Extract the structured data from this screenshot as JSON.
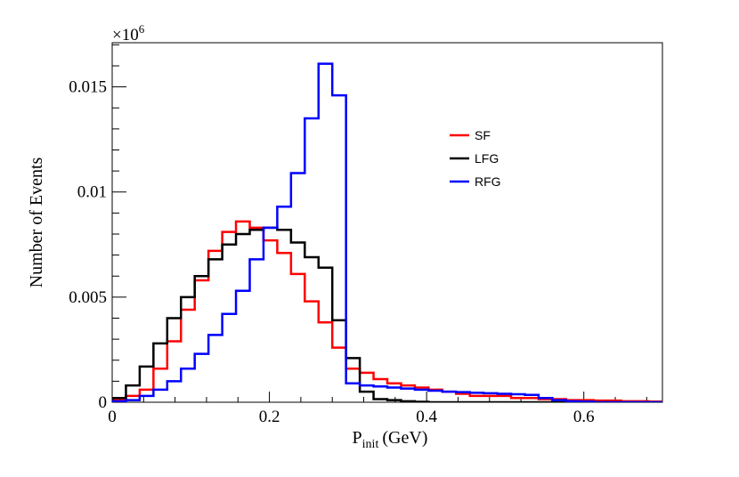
{
  "chart_data": {
    "type": "histogram",
    "title": "",
    "xlabel": {
      "main": "P",
      "subscript": "init",
      "unit": "(GeV)"
    },
    "ylabel": "Number of Events",
    "y_multiplier": {
      "base": "×10",
      "exponent": "6"
    },
    "xlim": [
      0,
      0.7
    ],
    "ylim": [
      0,
      0.0171
    ],
    "x_ticks": [
      {
        "value": 0,
        "label": "0"
      },
      {
        "value": 0.2,
        "label": "0.2"
      },
      {
        "value": 0.4,
        "label": "0.4"
      },
      {
        "value": 0.6,
        "label": "0.6"
      }
    ],
    "y_ticks": [
      {
        "value": 0,
        "label": "0"
      },
      {
        "value": 0.005,
        "label": "0.005"
      },
      {
        "value": 0.01,
        "label": "0.01"
      },
      {
        "value": 0.015,
        "label": "0.015"
      }
    ],
    "bin_edges_start": 0,
    "bin_width": 0.0175,
    "legend_position": "top-right",
    "series": [
      {
        "name": "SF",
        "color": "#ff0000",
        "values": [
          0.0001,
          0.0003,
          0.0006,
          0.0016,
          0.0029,
          0.0044,
          0.0058,
          0.0072,
          0.0081,
          0.0086,
          0.0083,
          0.0077,
          0.0071,
          0.0061,
          0.0048,
          0.0038,
          0.0026,
          0.0016,
          0.0014,
          0.0011,
          0.0009,
          0.0008,
          0.0007,
          0.0006,
          0.0005,
          0.0004,
          0.0003,
          0.0003,
          0.0003,
          0.0002,
          0.0002,
          0.00015,
          0.00015,
          0.0001,
          0.0001,
          8e-05,
          8e-05,
          5e-05,
          5e-05,
          3e-05
        ]
      },
      {
        "name": "LFG",
        "color": "#000000",
        "values": [
          0.0002,
          0.0008,
          0.0017,
          0.0028,
          0.004,
          0.005,
          0.006,
          0.0068,
          0.0075,
          0.008,
          0.0082,
          0.0083,
          0.0082,
          0.0076,
          0.0069,
          0.0064,
          0.0039,
          0.0021,
          0.0005,
          0.00015,
          0.0001,
          5e-05,
          2e-05,
          0,
          0,
          0,
          0,
          0,
          0,
          0,
          0,
          0,
          0,
          0,
          0,
          0,
          0,
          0,
          0,
          0
        ]
      },
      {
        "name": "RFG",
        "color": "#0000ff",
        "values": [
          5e-05,
          0.0001,
          0.0003,
          0.0006,
          0.001,
          0.0016,
          0.0023,
          0.0032,
          0.0042,
          0.0053,
          0.0068,
          0.0083,
          0.0093,
          0.0109,
          0.0135,
          0.0161,
          0.0146,
          0.0009,
          0.0008,
          0.00075,
          0.0007,
          0.00065,
          0.0006,
          0.00055,
          0.0005,
          0.00048,
          0.00045,
          0.00043,
          0.0004,
          0.00038,
          0.00035,
          0.0002,
          0.0001,
          5e-05,
          3e-05,
          0,
          0,
          0,
          0,
          0
        ]
      }
    ]
  }
}
